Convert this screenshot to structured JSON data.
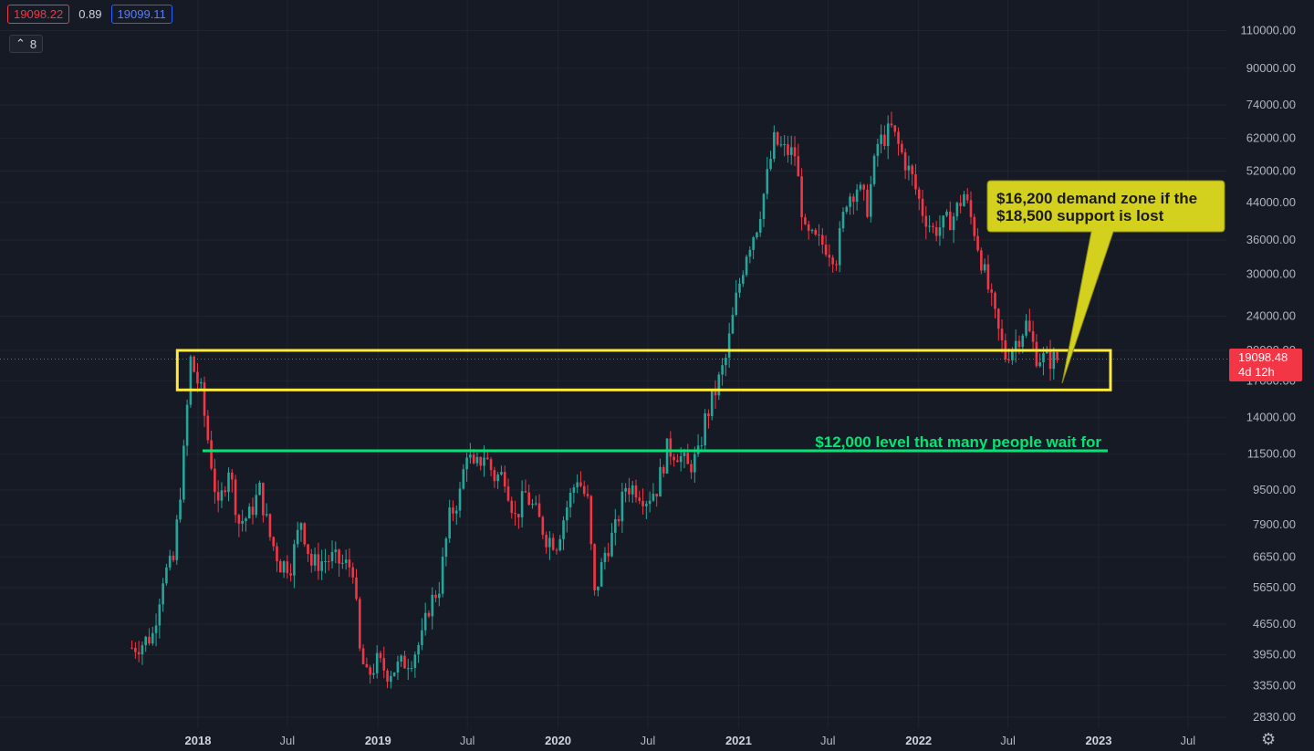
{
  "header": {
    "bid": "19098.22",
    "spread": "0.89",
    "ask": "19099.11",
    "collapse_count": "8",
    "collapse_icon": "chevron-up-icon"
  },
  "price_tag": {
    "price": "19098.48",
    "countdown": "4d 12h"
  },
  "settings_icon": "gear-icon",
  "colors": {
    "background": "#161a25",
    "up": "#26a69a",
    "down": "#f23645",
    "zone": "#ffeb3b",
    "level": "#00e676",
    "callout": "#d4d11e"
  },
  "chart_data": {
    "type": "candlestick",
    "scale": "log",
    "ylim": [
      2600,
      125000
    ],
    "y_ticks": [
      "110000.00",
      "90000.00",
      "74000.00",
      "62000.00",
      "52000.00",
      "44000.00",
      "36000.00",
      "30000.00",
      "24000.00",
      "20000.00",
      "17000.00",
      "14000.00",
      "11500.00",
      "9500.00",
      "7900.00",
      "6650.00",
      "5650.00",
      "4650.00",
      "3950.00",
      "3350.00",
      "2830.00"
    ],
    "x_ticks": [
      "2018",
      "Jul",
      "2019",
      "Jul",
      "2020",
      "Jul",
      "2021",
      "Jul",
      "2022",
      "Jul",
      "2023",
      "Jul"
    ],
    "x_tick_dates": [
      "2018-01-01",
      "2018-07-01",
      "2019-01-01",
      "2019-07-01",
      "2020-01-01",
      "2020-07-01",
      "2021-01-01",
      "2021-07-01",
      "2022-01-01",
      "2022-07-01",
      "2023-01-01",
      "2023-07-01"
    ],
    "x_range": [
      "2017-05-08",
      "2023-12-31"
    ],
    "approx_weekly_closes": [
      [
        "2017-08-20",
        4100
      ],
      [
        "2017-09-10",
        4200
      ],
      [
        "2017-10-01",
        4400
      ],
      [
        "2017-10-22",
        6000
      ],
      [
        "2017-11-12",
        6500
      ],
      [
        "2017-12-03",
        11500
      ],
      [
        "2017-12-17",
        19000
      ],
      [
        "2018-01-07",
        16000
      ],
      [
        "2018-01-28",
        11000
      ],
      [
        "2018-02-11",
        8500
      ],
      [
        "2018-03-04",
        10800
      ],
      [
        "2018-03-25",
        8000
      ],
      [
        "2018-04-15",
        8300
      ],
      [
        "2018-05-06",
        9500
      ],
      [
        "2018-05-27",
        7400
      ],
      [
        "2018-06-17",
        6400
      ],
      [
        "2018-07-08",
        6400
      ],
      [
        "2018-07-29",
        8100
      ],
      [
        "2018-08-19",
        6400
      ],
      [
        "2018-09-09",
        6500
      ],
      [
        "2018-09-30",
        6600
      ],
      [
        "2018-10-21",
        6400
      ],
      [
        "2018-11-11",
        6300
      ],
      [
        "2018-11-25",
        4000
      ],
      [
        "2018-12-09",
        3500
      ],
      [
        "2018-12-30",
        3800
      ],
      [
        "2019-01-20",
        3600
      ],
      [
        "2019-02-10",
        3700
      ],
      [
        "2019-03-10",
        3900
      ],
      [
        "2019-03-31",
        4300
      ],
      [
        "2019-04-14",
        5100
      ],
      [
        "2019-05-05",
        5700
      ],
      [
        "2019-05-26",
        8200
      ],
      [
        "2019-06-16",
        9300
      ],
      [
        "2019-06-30",
        11800
      ],
      [
        "2019-07-14",
        10500
      ],
      [
        "2019-08-04",
        11500
      ],
      [
        "2019-08-25",
        10200
      ],
      [
        "2019-09-15",
        10300
      ],
      [
        "2019-10-06",
        8200
      ],
      [
        "2019-10-27",
        9300
      ],
      [
        "2019-11-17",
        8400
      ],
      [
        "2019-12-08",
        7400
      ],
      [
        "2019-12-29",
        7200
      ],
      [
        "2020-01-19",
        8700
      ],
      [
        "2020-02-09",
        10200
      ],
      [
        "2020-03-01",
        8900
      ],
      [
        "2020-03-15",
        5400
      ],
      [
        "2020-04-05",
        6800
      ],
      [
        "2020-04-26",
        7700
      ],
      [
        "2020-05-17",
        9700
      ],
      [
        "2020-06-07",
        9600
      ],
      [
        "2020-06-28",
        9100
      ],
      [
        "2020-07-19",
        9600
      ],
      [
        "2020-08-09",
        11800
      ],
      [
        "2020-08-30",
        11600
      ],
      [
        "2020-09-20",
        10700
      ],
      [
        "2020-10-11",
        11400
      ],
      [
        "2020-10-25",
        13800
      ],
      [
        "2020-11-15",
        16100
      ],
      [
        "2020-12-06",
        19100
      ],
      [
        "2020-12-27",
        26300
      ],
      [
        "2021-01-17",
        34000
      ],
      [
        "2021-02-07",
        39000
      ],
      [
        "2021-02-21",
        46000
      ],
      [
        "2021-03-14",
        61000
      ],
      [
        "2021-04-04",
        58000
      ],
      [
        "2021-04-25",
        57000
      ],
      [
        "2021-05-16",
        37000
      ],
      [
        "2021-06-06",
        35800
      ],
      [
        "2021-06-27",
        35000
      ],
      [
        "2021-07-18",
        33000
      ],
      [
        "2021-08-08",
        45000
      ],
      [
        "2021-08-29",
        48000
      ],
      [
        "2021-09-19",
        43000
      ],
      [
        "2021-10-10",
        60000
      ],
      [
        "2021-11-07",
        65000
      ],
      [
        "2021-11-28",
        57000
      ],
      [
        "2021-12-19",
        50000
      ],
      [
        "2022-01-09",
        42000
      ],
      [
        "2022-01-30",
        38000
      ],
      [
        "2022-02-20",
        39000
      ],
      [
        "2022-03-13",
        41000
      ],
      [
        "2022-04-03",
        46000
      ],
      [
        "2022-04-24",
        38000
      ],
      [
        "2022-05-15",
        30000
      ],
      [
        "2022-06-12",
        22000
      ],
      [
        "2022-06-26",
        19400
      ],
      [
        "2022-07-17",
        21000
      ],
      [
        "2022-08-07",
        23000
      ],
      [
        "2022-08-28",
        19500
      ],
      [
        "2022-09-18",
        19000
      ],
      [
        "2022-10-09",
        19100
      ]
    ],
    "annotations": [
      {
        "type": "zone",
        "from": 16200,
        "to": 20000,
        "x_from": "2017-11-20",
        "x_to": "2023-01-25"
      },
      {
        "type": "horizontal_line",
        "price": 12000,
        "x_from": "2018-01-01",
        "x_to": "2023-01-01",
        "label": "$12,000 level that many people wait for"
      },
      {
        "type": "callout",
        "text": [
          "$16,200 demand zone if the",
          "$18,500 support is lost"
        ]
      }
    ],
    "current_price": 19098.48
  }
}
